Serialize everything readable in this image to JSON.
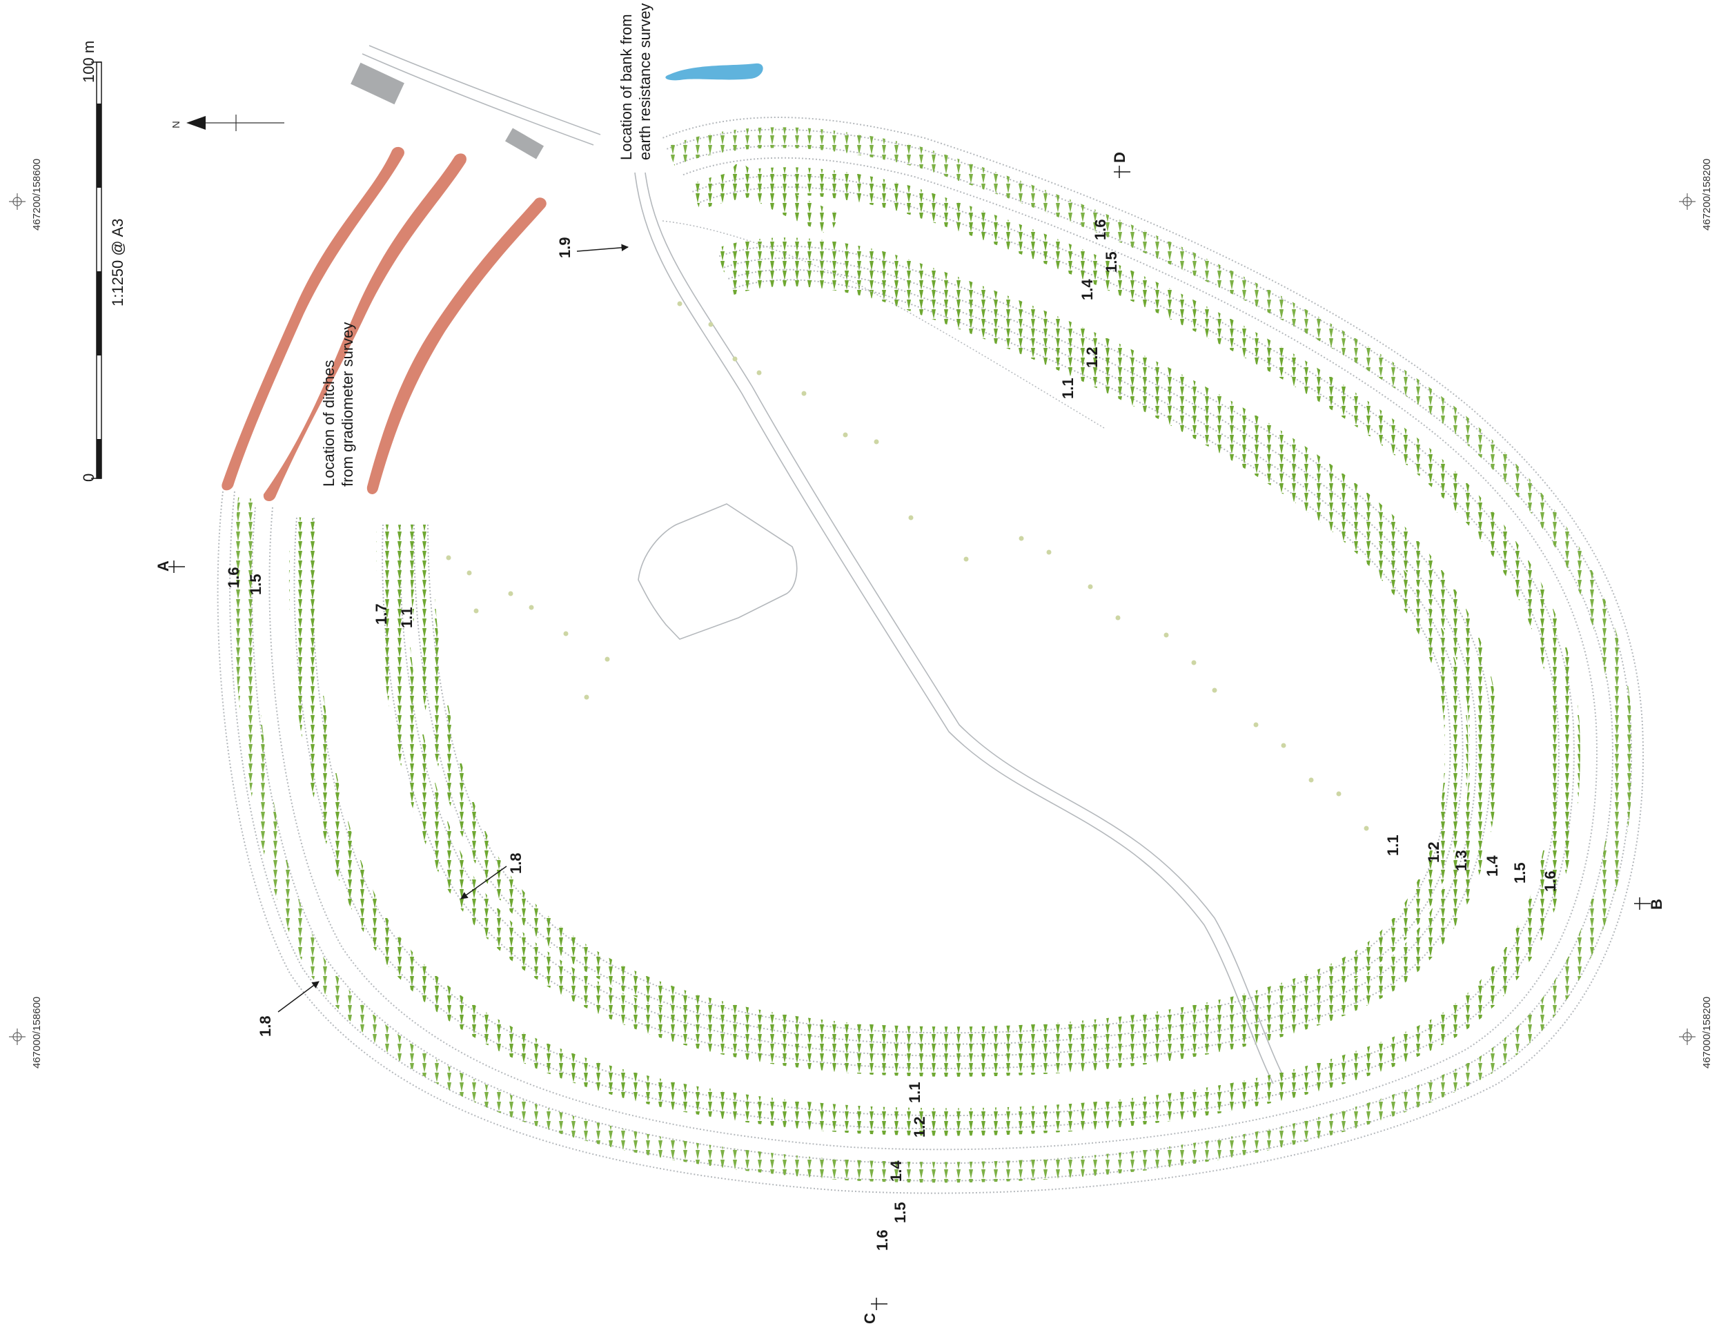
{
  "scale": {
    "zero": "0",
    "max": "100 m",
    "ratio": "1:1250 @ A3"
  },
  "north": "N",
  "grid_refs": {
    "top_left": "467200/158600",
    "top_right": "467200/158200",
    "bottom_left": "467000/158600",
    "bottom_right": "467000/158200"
  },
  "notes": {
    "bank_line1": "Location of bank from",
    "bank_line2": "earth resistance survey",
    "ditch_line1": "Location of ditches",
    "ditch_line2": "from gradiometer survey"
  },
  "sections": {
    "a": "A",
    "b": "B",
    "c": "C",
    "d": "D"
  },
  "labels": {
    "north_1_9": "1.9",
    "north_1_1": "1.1",
    "north_1_2": "1.2",
    "north_1_4": "1.4",
    "north_1_5": "1.5",
    "north_1_6": "1.6",
    "west_1_6": "1.6",
    "west_1_5": "1.5",
    "west_1_7": "1.7",
    "west_1_1": "1.1",
    "west_1_8a": "1.8",
    "west_1_8b": "1.8",
    "east_1_1": "1.1",
    "east_1_2": "1.2",
    "east_1_3": "1.3",
    "east_1_4": "1.4",
    "east_1_5": "1.5",
    "east_1_6": "1.6",
    "south_1_1": "1.1",
    "south_1_2": "1.2",
    "south_1_4": "1.4",
    "south_1_5": "1.5",
    "south_1_6": "1.6"
  },
  "colors": {
    "hachure": "#6fa832",
    "outline": "#b4b8bc",
    "ditch": "#d98470",
    "pond": "#5fb3dd",
    "building": "#a9abad",
    "dots": "#cdd6a4"
  }
}
